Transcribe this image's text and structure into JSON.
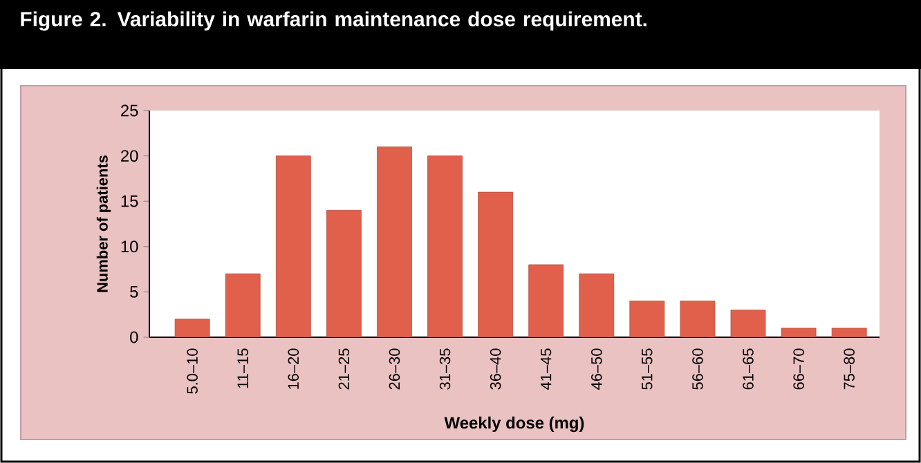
{
  "chart_data": {
    "type": "bar",
    "title": "Figure 2. Variability in warfarin maintenance dose requirement.",
    "xlabel": "Weekly dose (mg)",
    "ylabel": "Number of patients",
    "categories": [
      "5.0–10",
      "11–15",
      "16–20",
      "21–25",
      "26–30",
      "31–35",
      "36–40",
      "41–45",
      "46–50",
      "51–55",
      "56–60",
      "61–65",
      "66–70",
      "75–80"
    ],
    "values": [
      2,
      7,
      20,
      14,
      21,
      20,
      16,
      8,
      7,
      4,
      4,
      3,
      1,
      1
    ],
    "color": "#e0604c",
    "ylim": [
      0,
      25
    ],
    "yticks": [
      0,
      5,
      10,
      15,
      20,
      25
    ]
  }
}
